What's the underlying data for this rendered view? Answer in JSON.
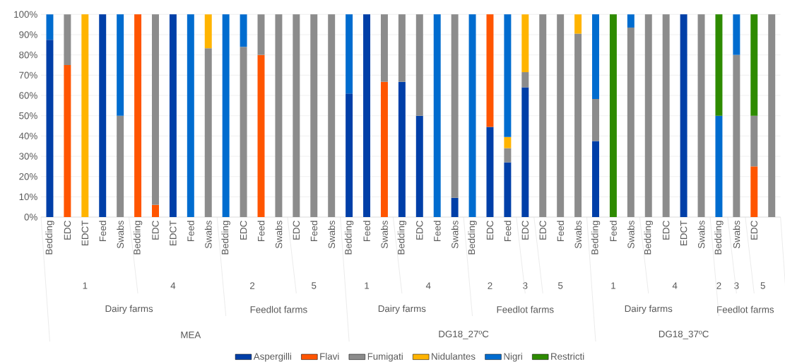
{
  "chart_data": {
    "type": "bar",
    "stacked": true,
    "grid": "y",
    "legend": "bottom",
    "categories": [
      "Bedding",
      "EDC",
      "EDCT",
      "Feed",
      "Swabs",
      "Bedding",
      "EDC",
      "EDCT",
      "Feed",
      "Swabs",
      "Bedding",
      "EDC",
      "Feed",
      "Swabs",
      "EDC",
      "Feed",
      "Swabs",
      "Bedding",
      "Feed",
      "Swabs",
      "Bedding",
      "EDC",
      "Feed",
      "Swabs",
      "Bedding",
      "EDC",
      "Feed",
      "EDC",
      "EDC",
      "Feed",
      "Swabs",
      "Bedding",
      "Feed",
      "Swabs",
      "Bedding",
      "EDC",
      "EDCT",
      "Swabs",
      "Bedding",
      "Swabs",
      "EDC",
      null
    ],
    "series": [
      {
        "name": "Aspergilli",
        "color": "#003fa8",
        "values": [
          87.5,
          null,
          null,
          100,
          null,
          null,
          null,
          100,
          null,
          null,
          null,
          null,
          null,
          null,
          null,
          null,
          null,
          61,
          100,
          null,
          66.7,
          50,
          null,
          9.5,
          null,
          44.5,
          27,
          64,
          null,
          null,
          null,
          37.5,
          null,
          null,
          null,
          null,
          100,
          null,
          null,
          null,
          null,
          null
        ]
      },
      {
        "name": "Flavi",
        "color": "#ff5500",
        "values": [
          null,
          75,
          null,
          null,
          null,
          100,
          6,
          null,
          null,
          null,
          null,
          null,
          80,
          null,
          null,
          null,
          null,
          null,
          null,
          66.7,
          null,
          null,
          null,
          null,
          null,
          55.5,
          null,
          null,
          null,
          null,
          null,
          null,
          null,
          null,
          null,
          null,
          null,
          null,
          null,
          null,
          25,
          null
        ]
      },
      {
        "name": "Fumigati",
        "color": "#8c8c8c",
        "values": [
          null,
          25,
          null,
          null,
          50,
          null,
          94,
          null,
          null,
          83.3,
          null,
          84,
          20,
          100,
          100,
          100,
          100,
          null,
          null,
          33.3,
          33.3,
          50,
          null,
          90.5,
          null,
          null,
          7,
          7.5,
          100,
          100,
          90.5,
          20.8,
          null,
          93.5,
          100,
          100,
          null,
          100,
          null,
          80,
          25,
          100
        ]
      },
      {
        "name": "Nidulantes",
        "color": "#ffb400",
        "values": [
          null,
          null,
          100,
          null,
          null,
          null,
          null,
          null,
          null,
          16.7,
          null,
          null,
          null,
          null,
          null,
          null,
          null,
          null,
          null,
          null,
          null,
          null,
          null,
          null,
          null,
          null,
          5.5,
          28.5,
          null,
          null,
          9.5,
          null,
          null,
          null,
          null,
          null,
          null,
          null,
          null,
          null,
          null,
          null
        ]
      },
      {
        "name": "Nigri",
        "color": "#006ccf",
        "values": [
          12.5,
          null,
          null,
          null,
          50,
          null,
          null,
          null,
          100,
          null,
          100,
          16,
          null,
          null,
          null,
          null,
          null,
          39,
          null,
          null,
          null,
          null,
          100,
          null,
          100,
          null,
          60.5,
          null,
          null,
          null,
          null,
          41.7,
          null,
          6.5,
          null,
          null,
          null,
          null,
          50,
          20,
          null,
          null
        ]
      },
      {
        "name": "Restricti",
        "color": "#2e8b00",
        "values": [
          null,
          null,
          null,
          null,
          null,
          null,
          null,
          null,
          null,
          null,
          null,
          null,
          null,
          null,
          null,
          null,
          null,
          null,
          null,
          null,
          null,
          null,
          null,
          null,
          null,
          null,
          null,
          null,
          null,
          null,
          null,
          null,
          100,
          null,
          null,
          null,
          null,
          null,
          50,
          null,
          50,
          null
        ]
      }
    ],
    "ylim": [
      0,
      100
    ],
    "yticks": [
      {
        "value": 0,
        "label": "0%"
      },
      {
        "value": 10,
        "label": "10%"
      },
      {
        "value": 20,
        "label": "20%"
      },
      {
        "value": 30,
        "label": "30%"
      },
      {
        "value": 40,
        "label": "40%"
      },
      {
        "value": 50,
        "label": "50%"
      },
      {
        "value": 60,
        "label": "60%"
      },
      {
        "value": 70,
        "label": "70%"
      },
      {
        "value": 80,
        "label": "80%"
      },
      {
        "value": 90,
        "label": "90%"
      },
      {
        "value": 100,
        "label": "100%"
      }
    ],
    "annotations": [
      "1",
      "4",
      "2",
      "5",
      "1",
      "4",
      "2",
      "3",
      "5",
      "1",
      "4",
      "2",
      "3",
      "5",
      "Dairy farms",
      "Feedlot farms",
      "Dairy farms",
      "Feedlot farms",
      "Dairy farms",
      "Feedlot farms",
      "MEA",
      "DG18_27ºC",
      "DG18_37ºC"
    ]
  }
}
